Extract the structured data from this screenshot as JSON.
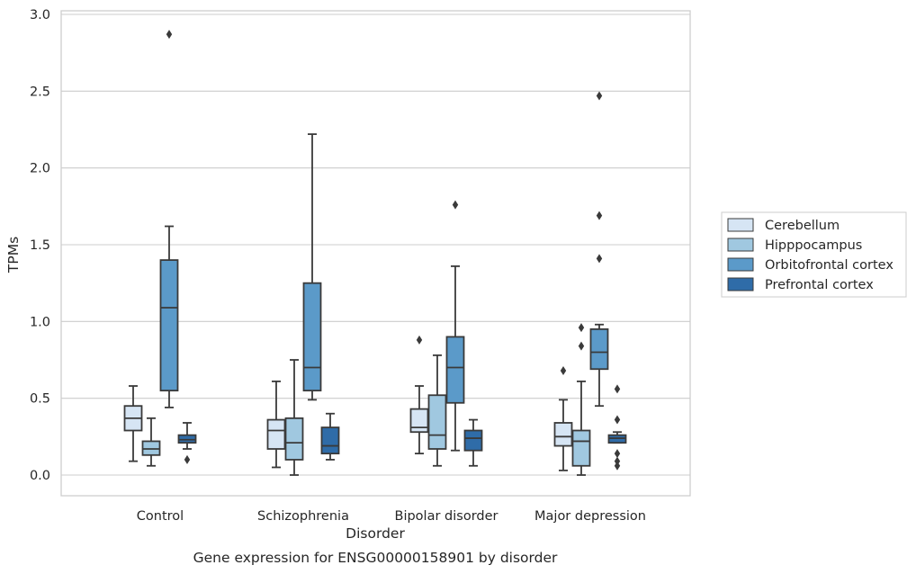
{
  "chart_data": {
    "type": "box",
    "title": "",
    "caption": "Gene expression for ENSG00000158901 by disorder",
    "xlabel": "Disorder",
    "ylabel": "TPMs",
    "ylim": [
      -0.14,
      3.02
    ],
    "yticks": [
      0.0,
      0.5,
      1.0,
      1.5,
      2.0,
      2.5,
      3.0
    ],
    "ytick_labels": [
      "0.0",
      "0.5",
      "1.0",
      "1.5",
      "2.0",
      "2.5",
      "3.0"
    ],
    "grid": "horizontal",
    "legend_position": "right",
    "categories": [
      "Control",
      "Schizophrenia",
      "Bipolar disorder",
      "Major depression"
    ],
    "series": [
      {
        "name": "Cerebellum",
        "color": "#d6e5f4",
        "boxes": [
          {
            "whisker_low": 0.09,
            "q1": 0.29,
            "median": 0.37,
            "q3": 0.45,
            "whisker_high": 0.58,
            "outliers": []
          },
          {
            "whisker_low": 0.05,
            "q1": 0.17,
            "median": 0.29,
            "q3": 0.36,
            "whisker_high": 0.61,
            "outliers": []
          },
          {
            "whisker_low": 0.14,
            "q1": 0.28,
            "median": 0.31,
            "q3": 0.43,
            "whisker_high": 0.58,
            "outliers": [
              0.88
            ]
          },
          {
            "whisker_low": 0.03,
            "q1": 0.19,
            "median": 0.25,
            "q3": 0.34,
            "whisker_high": 0.49,
            "outliers": [
              0.68
            ]
          }
        ]
      },
      {
        "name": "Hipppocampus",
        "color": "#a0c8e0",
        "boxes": [
          {
            "whisker_low": 0.06,
            "q1": 0.13,
            "median": 0.17,
            "q3": 0.22,
            "whisker_high": 0.37,
            "outliers": []
          },
          {
            "whisker_low": 0.0,
            "q1": 0.1,
            "median": 0.21,
            "q3": 0.37,
            "whisker_high": 0.75,
            "outliers": []
          },
          {
            "whisker_low": 0.06,
            "q1": 0.17,
            "median": 0.26,
            "q3": 0.52,
            "whisker_high": 0.78,
            "outliers": []
          },
          {
            "whisker_low": 0.0,
            "q1": 0.06,
            "median": 0.22,
            "q3": 0.29,
            "whisker_high": 0.61,
            "outliers": [
              0.84,
              0.96
            ]
          }
        ]
      },
      {
        "name": "Orbitofrontal cortex",
        "color": "#5b9ac9",
        "boxes": [
          {
            "whisker_low": 0.44,
            "q1": 0.55,
            "median": 1.09,
            "q3": 1.4,
            "whisker_high": 1.62,
            "outliers": [
              2.87
            ]
          },
          {
            "whisker_low": 0.49,
            "q1": 0.55,
            "median": 0.7,
            "q3": 1.25,
            "whisker_high": 2.22,
            "outliers": []
          },
          {
            "whisker_low": 0.16,
            "q1": 0.47,
            "median": 0.7,
            "q3": 0.9,
            "whisker_high": 1.36,
            "outliers": [
              1.76
            ]
          },
          {
            "whisker_low": 0.45,
            "q1": 0.69,
            "median": 0.8,
            "q3": 0.95,
            "whisker_high": 0.98,
            "outliers": [
              1.41,
              1.69,
              2.47
            ]
          }
        ]
      },
      {
        "name": "Prefrontal cortex",
        "color": "#2f6ca8",
        "boxes": [
          {
            "whisker_low": 0.17,
            "q1": 0.21,
            "median": 0.23,
            "q3": 0.26,
            "whisker_high": 0.34,
            "outliers": [
              0.1
            ]
          },
          {
            "whisker_low": 0.1,
            "q1": 0.14,
            "median": 0.19,
            "q3": 0.31,
            "whisker_high": 0.4,
            "outliers": []
          },
          {
            "whisker_low": 0.06,
            "q1": 0.16,
            "median": 0.24,
            "q3": 0.29,
            "whisker_high": 0.36,
            "outliers": []
          },
          {
            "whisker_low": 0.21,
            "q1": 0.21,
            "median": 0.24,
            "q3": 0.26,
            "whisker_high": 0.28,
            "outliers": [
              0.06,
              0.09,
              0.14,
              0.36,
              0.56
            ]
          }
        ]
      }
    ]
  }
}
